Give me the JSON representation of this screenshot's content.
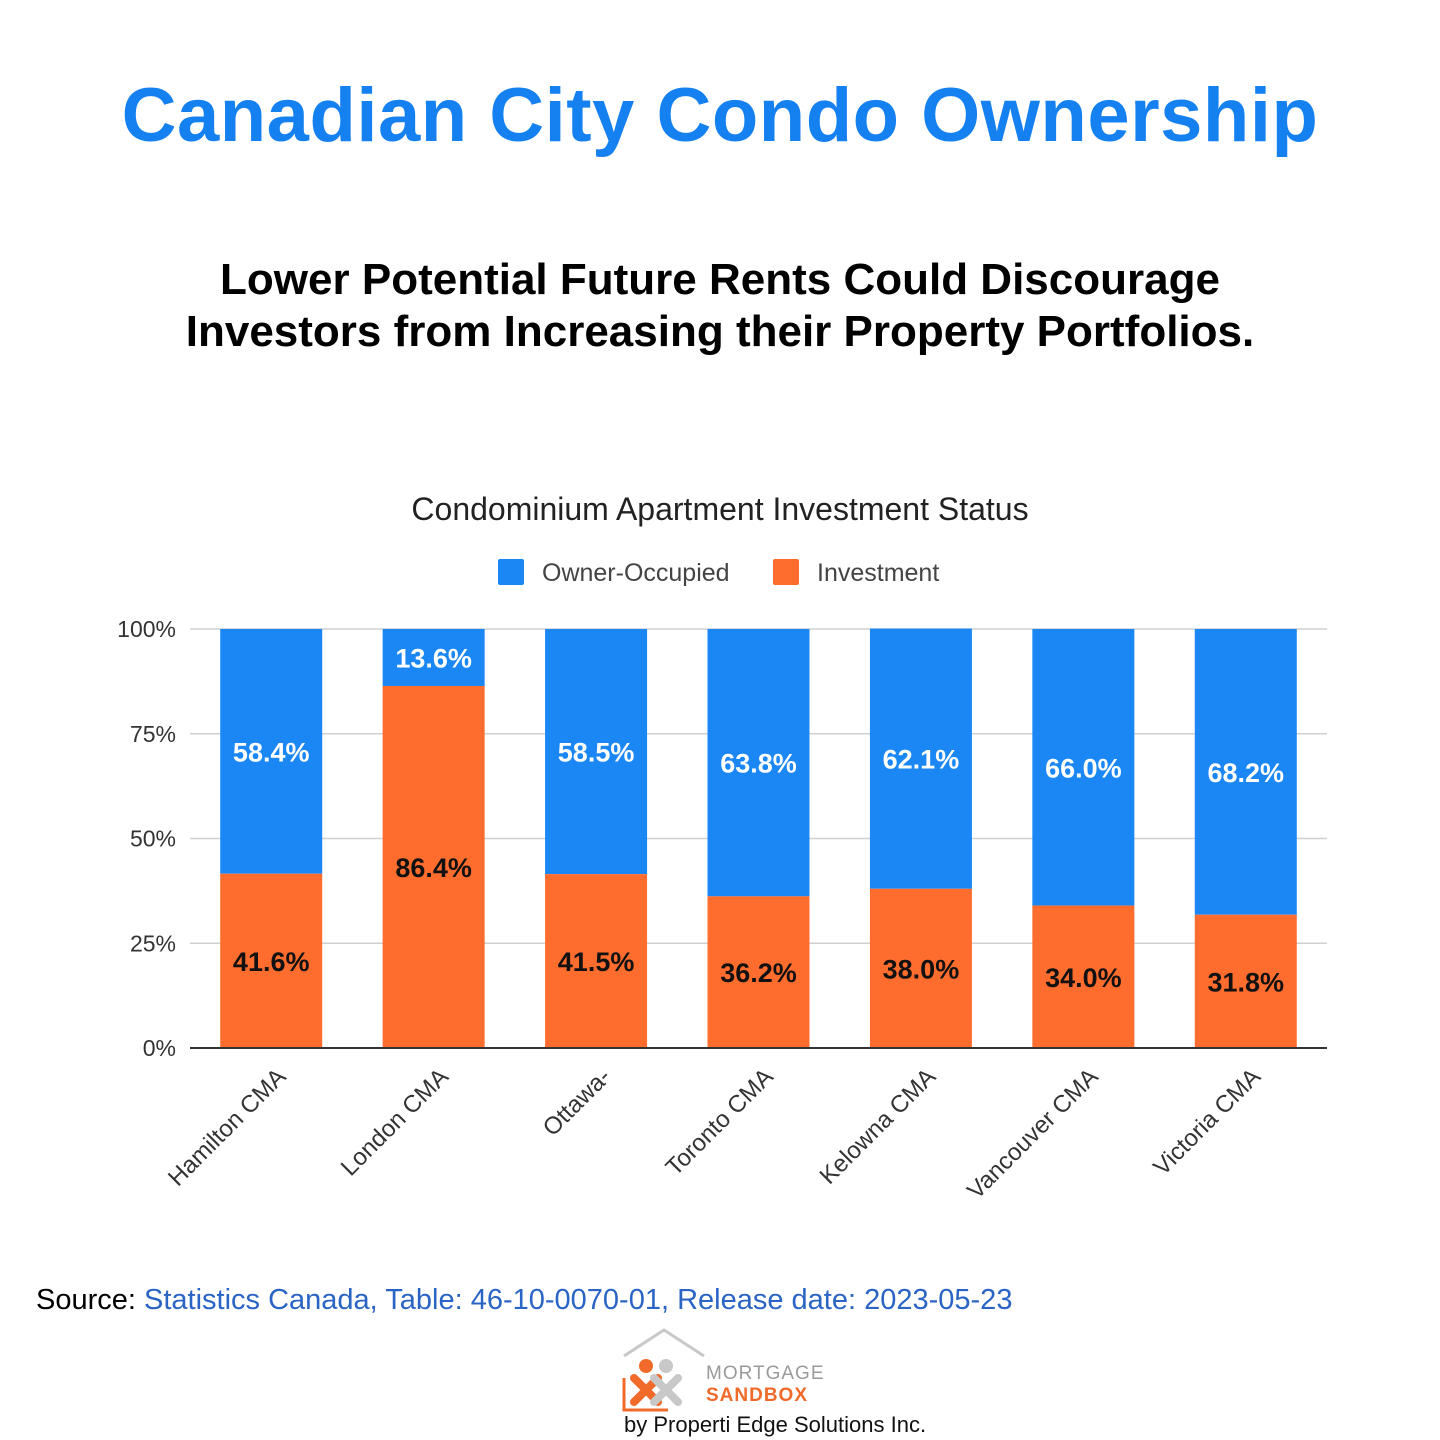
{
  "header": {
    "title": "Canadian City Condo Ownership",
    "subtitle_line1": "Lower Potential Future Rents Could Discourage",
    "subtitle_line2": "Investors from Increasing their Property Portfolios."
  },
  "chart_data": {
    "type": "bar",
    "stacked": true,
    "title": "Condominium Apartment Investment Status",
    "categories": [
      "Hamilton CMA",
      "London CMA",
      "Ottawa-",
      "Toronto CMA",
      "Kelowna CMA",
      "Vancouver CMA",
      "Victoria CMA"
    ],
    "series": [
      {
        "name": "Investment",
        "color": "#ff6d2e",
        "values": [
          41.6,
          86.4,
          41.5,
          36.2,
          38.0,
          34.0,
          31.8
        ],
        "labels": [
          "41.6%",
          "86.4%",
          "41.5%",
          "36.2%",
          "38.0%",
          "34.0%",
          "31.8%"
        ]
      },
      {
        "name": "Owner-Occupied",
        "color": "#1a87f5",
        "values": [
          58.4,
          13.6,
          58.5,
          63.8,
          62.1,
          66.0,
          68.2
        ],
        "labels": [
          "58.4%",
          "13.6%",
          "58.5%",
          "63.8%",
          "62.1%",
          "66.0%",
          "68.2%"
        ]
      }
    ],
    "legend": [
      {
        "name": "Owner-Occupied",
        "color": "#1a87f5"
      },
      {
        "name": "Investment",
        "color": "#ff6d2e"
      }
    ],
    "legend_position": "top-center",
    "ylim": [
      0,
      100
    ],
    "yticks": [
      0,
      25,
      50,
      75,
      100
    ],
    "ytick_labels": [
      "0%",
      "25%",
      "50%",
      "75%",
      "100%"
    ],
    "grid": true,
    "xlabel": "",
    "ylabel": ""
  },
  "footer": {
    "source_prefix": "Source:",
    "source_text": "Statistics Canada, Table: 46-10-0070-01, Release date: 2023-05-23"
  },
  "logo": {
    "line1": "MORTGAGE",
    "line2": "SANDBOX",
    "byline": "by Properti Edge Solutions Inc."
  }
}
